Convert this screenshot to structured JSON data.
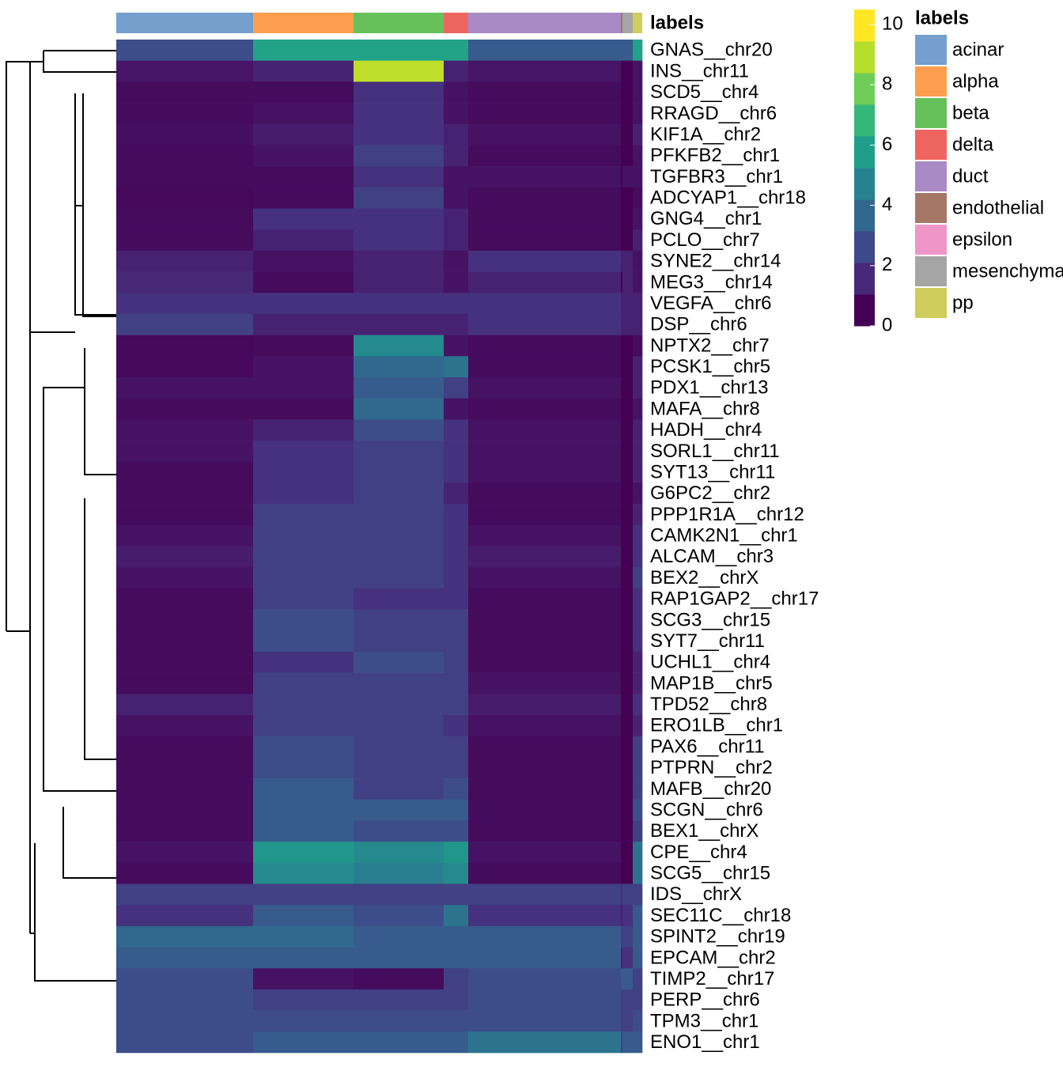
{
  "chart_data": {
    "type": "heatmap",
    "annotation_name": "labels",
    "legend_title": "labels",
    "groups": [
      "acinar",
      "alpha",
      "beta",
      "delta",
      "duct",
      "endothelial",
      "epsilon",
      "mesenchymal",
      "pp"
    ],
    "group_colors": [
      "#759fcc",
      "#fd9e4f",
      "#66c15a",
      "#ee665f",
      "#a98ac5",
      "#a47766",
      "#ef96c9",
      "#a5a5a5",
      "#cfcd5c"
    ],
    "cell_counts": [
      173,
      127,
      114,
      31,
      193,
      2,
      0,
      13,
      12
    ],
    "rows": [
      "GNAS__chr20",
      "INS__chr11",
      "SCD5__chr4",
      "RRAGD__chr6",
      "KIF1A__chr2",
      "PFKFB2__chr1",
      "TGFBR3__chr1",
      "ADCYAP1__chr18",
      "GNG4__chr1",
      "PCLO__chr7",
      "SYNE2__chr14",
      "MEG3__chr14",
      "VEGFA__chr6",
      "DSP__chr6",
      "NPTX2__chr7",
      "PCSK1__chr5",
      "PDX1__chr13",
      "MAFA__chr8",
      "HADH__chr4",
      "SORL1__chr11",
      "SYT13__chr11",
      "G6PC2__chr2",
      "PPP1R1A__chr12",
      "CAMK2N1__chr1",
      "ALCAM__chr3",
      "BEX2__chrX",
      "RAP1GAP2__chr17",
      "SCG3__chr15",
      "SYT7__chr11",
      "UCHL1__chr4",
      "MAP1B__chr5",
      "TPD52__chr8",
      "ERO1LB__chr1",
      "PAX6__chr11",
      "PTPRN__chr2",
      "MAFB__chr20",
      "SCGN__chr6",
      "BEX1__chrX",
      "CPE__chr4",
      "SCG5__chr15",
      "IDS__chrX",
      "SEC11C__chr18",
      "SPINT2__chr19",
      "EPCAM__chr2",
      "TIMP2__chr17",
      "PERP__chr6",
      "TPM3__chr1",
      "ENO1__chr1"
    ],
    "values": [
      [
        2.5,
        6,
        6,
        6,
        3,
        3,
        0,
        3,
        6
      ],
      [
        0.6,
        1,
        9.5,
        1,
        0.6,
        0,
        0,
        0,
        0.5
      ],
      [
        0.3,
        0.3,
        1.5,
        0.5,
        0.3,
        0,
        0,
        0,
        0.5
      ],
      [
        0.3,
        0.5,
        1.5,
        0.5,
        0.3,
        0,
        0,
        0,
        0.5
      ],
      [
        0.4,
        0.8,
        1.5,
        1,
        0.5,
        0,
        0,
        0,
        1
      ],
      [
        0.3,
        0.5,
        2,
        1,
        0.3,
        0,
        0,
        0,
        0.5
      ],
      [
        0.3,
        0.3,
        1.5,
        0.5,
        0.5,
        0,
        0,
        0.5,
        0.5
      ],
      [
        0.2,
        0.3,
        2,
        0.5,
        0.3,
        0,
        0,
        0,
        0.3
      ],
      [
        0.3,
        1.5,
        1.5,
        1,
        0.3,
        0,
        0,
        0,
        0.5
      ],
      [
        0.3,
        1,
        1.5,
        1,
        0.3,
        0,
        0,
        0,
        1
      ],
      [
        1,
        0.5,
        1,
        0.5,
        1.5,
        1,
        0,
        1,
        0.5
      ],
      [
        1.2,
        0.3,
        1,
        0.5,
        1,
        0,
        0,
        1,
        0.5
      ],
      [
        1.5,
        1.5,
        1.5,
        1.5,
        1.5,
        1,
        0,
        1,
        1
      ],
      [
        2,
        1,
        1,
        1,
        1.5,
        1,
        0,
        1,
        1
      ],
      [
        0.2,
        0.3,
        5,
        0.5,
        0.3,
        0,
        0,
        0,
        0.3
      ],
      [
        0.2,
        0.5,
        3.5,
        4,
        0.3,
        0,
        0,
        0,
        1
      ],
      [
        0.5,
        0.5,
        3,
        2,
        0.5,
        0,
        0,
        0,
        1
      ],
      [
        0.3,
        0.3,
        3.5,
        0.5,
        0.3,
        0,
        0,
        0,
        0.5
      ],
      [
        0.5,
        1,
        2.5,
        1.5,
        0.5,
        0,
        0,
        0,
        1
      ],
      [
        0.5,
        1.5,
        2,
        1.5,
        0.5,
        0,
        0,
        0,
        1
      ],
      [
        0.3,
        1.5,
        2,
        1.5,
        0.5,
        0,
        0,
        0,
        1
      ],
      [
        0.3,
        1.5,
        2,
        1,
        0.3,
        0,
        0,
        0,
        0.5
      ],
      [
        0.3,
        2,
        2,
        1.5,
        0.3,
        0,
        0,
        0,
        1
      ],
      [
        0.5,
        2,
        2,
        1.5,
        0.5,
        0,
        0,
        0,
        1.5
      ],
      [
        0.8,
        2,
        2,
        1.5,
        0.8,
        0,
        0,
        0,
        1.5
      ],
      [
        0.5,
        2,
        2,
        1.5,
        0.5,
        0,
        0,
        0,
        2
      ],
      [
        0.3,
        2,
        1.5,
        1.5,
        0.3,
        0,
        0,
        0,
        1.5
      ],
      [
        0.3,
        2.5,
        2,
        2,
        0.3,
        0,
        0,
        0,
        1.5
      ],
      [
        0.3,
        2.5,
        2,
        2,
        0.3,
        0,
        0,
        0,
        1.5
      ],
      [
        0.3,
        1.5,
        2.5,
        2,
        0.3,
        0,
        0,
        0,
        1
      ],
      [
        0.3,
        2,
        2,
        2,
        0.5,
        0,
        0,
        0,
        1
      ],
      [
        1,
        2,
        2,
        2,
        0.8,
        0,
        0,
        0,
        1.5
      ],
      [
        0.5,
        2,
        2,
        1.5,
        0.5,
        0,
        0,
        0,
        1
      ],
      [
        0.3,
        2.5,
        2,
        2,
        0.3,
        0,
        0,
        0,
        2
      ],
      [
        0.3,
        2.5,
        2,
        2,
        0.3,
        0,
        0,
        0,
        2
      ],
      [
        0.3,
        3,
        2,
        2.5,
        0.3,
        0,
        0,
        0,
        2
      ],
      [
        0.3,
        3,
        3,
        3,
        0.3,
        0,
        0,
        0,
        2.5
      ],
      [
        0.3,
        3,
        2.5,
        2.5,
        0.3,
        0,
        0,
        0,
        2
      ],
      [
        0.5,
        5.5,
        5,
        5.5,
        0.5,
        0,
        0,
        0,
        4
      ],
      [
        0.3,
        5,
        4.5,
        5,
        0.3,
        0,
        0,
        0,
        4
      ],
      [
        2,
        2,
        2,
        2,
        2,
        1.5,
        0,
        2,
        2
      ],
      [
        1.5,
        3,
        2.5,
        4,
        1.5,
        1,
        0,
        1.5,
        3
      ],
      [
        3.5,
        3.5,
        3,
        3,
        3,
        2,
        0,
        2,
        3
      ],
      [
        3,
        3,
        3,
        3,
        3,
        1,
        0,
        1.5,
        3
      ],
      [
        2.5,
        0.5,
        0.3,
        2,
        2.5,
        3,
        0,
        3,
        2
      ],
      [
        2.5,
        2,
        2,
        2,
        2.5,
        2,
        0,
        2,
        2
      ],
      [
        2.5,
        2.5,
        2.5,
        2.5,
        2.5,
        2,
        0,
        2,
        2.5
      ],
      [
        2.5,
        3,
        3,
        3,
        4,
        2,
        0,
        3,
        3
      ]
    ],
    "colorscale": [
      "#440154",
      "#482878",
      "#3e4989",
      "#31688e",
      "#26828e",
      "#1f9e89",
      "#35b779",
      "#6ece58",
      "#b5de2b",
      "#fde725"
    ],
    "zlim": [
      0,
      10.5
    ],
    "zticks": [
      0,
      2,
      4,
      6,
      8,
      10
    ]
  }
}
